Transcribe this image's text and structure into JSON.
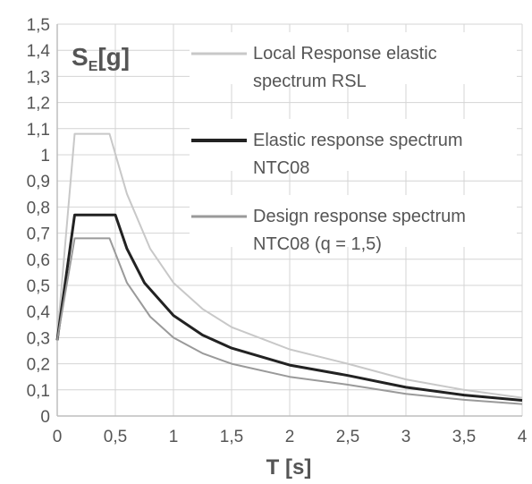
{
  "chart_data": {
    "type": "line",
    "title": "",
    "xlabel": "T [s]",
    "ylabel": {
      "main": "S",
      "subscript": "E",
      "unit": "[g]"
    },
    "xlim": [
      0,
      4
    ],
    "ylim": [
      0,
      1.5
    ],
    "grid": true,
    "legend_position": "top-right",
    "x_ticks": [
      "0",
      "0,5",
      "1",
      "1,5",
      "2",
      "2,5",
      "3",
      "3,5",
      "4"
    ],
    "y_ticks": [
      "0",
      "0,1",
      "0,2",
      "0,3",
      "0,4",
      "0,5",
      "0,6",
      "0,7",
      "0,8",
      "0,9",
      "1",
      "1,1",
      "1,2",
      "1,3",
      "1,4",
      "1,5"
    ],
    "series": [
      {
        "name": "Local Response elastic spectrum  RSL",
        "legend_lines": [
          "Local Response elastic",
          "spectrum  RSL"
        ],
        "color": "#c8c8c8",
        "width": 2,
        "points": [
          [
            0,
            0.3
          ],
          [
            0.15,
            1.08
          ],
          [
            0.45,
            1.08
          ],
          [
            0.6,
            0.85
          ],
          [
            0.8,
            0.64
          ],
          [
            1.0,
            0.51
          ],
          [
            1.25,
            0.41
          ],
          [
            1.5,
            0.34
          ],
          [
            2.0,
            0.255
          ],
          [
            2.5,
            0.2
          ],
          [
            3.0,
            0.14
          ],
          [
            3.5,
            0.1
          ],
          [
            4.0,
            0.07
          ]
        ]
      },
      {
        "name": "Elastic response spectrum NTC08",
        "legend_lines": [
          "Elastic response spectrum",
          "NTC08"
        ],
        "color": "#222222",
        "width": 3,
        "points": [
          [
            0,
            0.29
          ],
          [
            0.15,
            0.77
          ],
          [
            0.5,
            0.77
          ],
          [
            0.6,
            0.64
          ],
          [
            0.75,
            0.51
          ],
          [
            1.0,
            0.385
          ],
          [
            1.25,
            0.31
          ],
          [
            1.5,
            0.26
          ],
          [
            2.0,
            0.195
          ],
          [
            2.5,
            0.155
          ],
          [
            3.0,
            0.11
          ],
          [
            3.5,
            0.08
          ],
          [
            4.0,
            0.06
          ]
        ]
      },
      {
        "name": "Design response spectrum NTC08 (q = 1,5)",
        "legend_lines": [
          "Design response spectrum",
          "NTC08 (q = 1,5)"
        ],
        "color": "#9a9a9a",
        "width": 2,
        "points": [
          [
            0,
            0.29
          ],
          [
            0.15,
            0.68
          ],
          [
            0.45,
            0.68
          ],
          [
            0.6,
            0.51
          ],
          [
            0.8,
            0.38
          ],
          [
            1.0,
            0.3
          ],
          [
            1.25,
            0.24
          ],
          [
            1.5,
            0.2
          ],
          [
            2.0,
            0.15
          ],
          [
            2.5,
            0.12
          ],
          [
            3.0,
            0.085
          ],
          [
            3.5,
            0.062
          ],
          [
            4.0,
            0.046
          ]
        ]
      }
    ]
  }
}
